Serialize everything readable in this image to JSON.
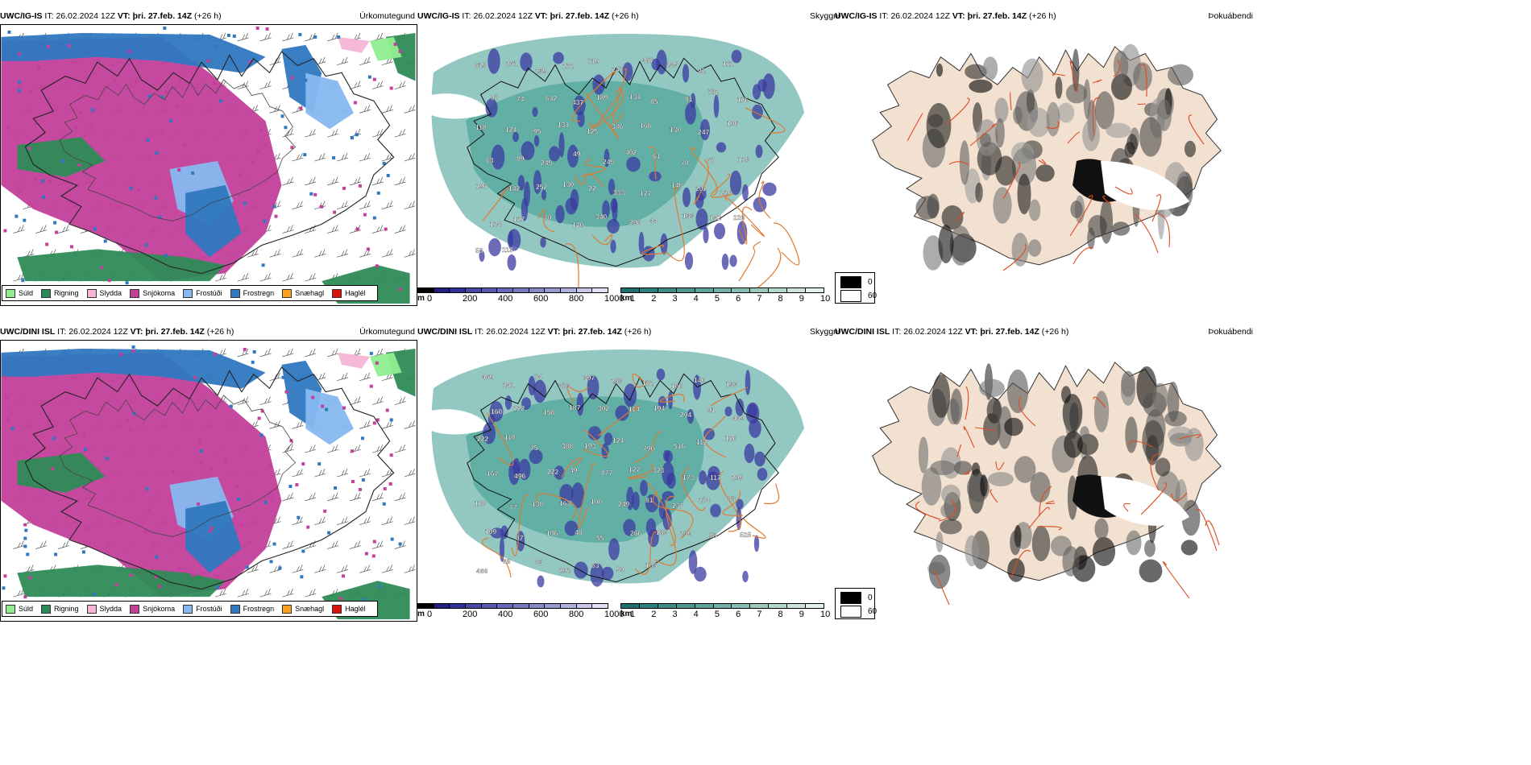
{
  "rows": [
    {
      "id": "row1",
      "panels": [
        {
          "model": "UWC/IG-IS",
          "it_label": "IT:",
          "it": "26.02.2024 12Z",
          "vt_label": "VT:",
          "vt": "þri. 27.feb. 14Z",
          "lead": "(+26 h)",
          "field": "Úrkomutegund"
        },
        {
          "model": "UWC/IG-IS",
          "it_label": "IT:",
          "it": "26.02.2024 12Z",
          "vt_label": "VT:",
          "vt": "þri. 27.feb. 14Z",
          "lead": "(+26 h)",
          "field": "Skyggni"
        },
        {
          "model": "UWC/IG-IS",
          "it_label": "IT:",
          "it": "26.02.2024 12Z",
          "vt_label": "VT:",
          "vt": "þri. 27.feb. 14Z",
          "lead": "(+26 h)",
          "field": "Þokuábendi"
        }
      ],
      "cloud_labels": [
        "615",
        "261",
        "239",
        "272",
        "719",
        "247",
        "487",
        "245",
        "92",
        "111",
        "97",
        "74",
        "642",
        "437",
        "189",
        "131",
        "85",
        "81",
        "782",
        "176",
        "118",
        "124",
        "95",
        "131",
        "125",
        "386",
        "168",
        "130",
        "247",
        "106",
        "63",
        "89",
        "245",
        "49",
        "245",
        "402",
        "61",
        "78",
        "67",
        "128",
        "291",
        "142",
        "252",
        "130",
        "22",
        "333",
        "127",
        "148",
        "202",
        "226",
        "124",
        "127",
        "70",
        "140",
        "340",
        "296",
        "44",
        "133",
        "142",
        "226",
        "56",
        "113"
      ]
    },
    {
      "id": "row2",
      "panels": [
        {
          "model": "UWC/DINI ISL",
          "it_label": "IT:",
          "it": "26.02.2024 12Z",
          "vt_label": "VT:",
          "vt": "þri. 27.feb. 14Z",
          "lead": "(+26 h)",
          "field": "Úrkomutegund"
        },
        {
          "model": "UWC/DINI ISL",
          "it_label": "IT:",
          "it": "26.02.2024 12Z",
          "vt_label": "VT:",
          "vt": "þri. 27.feb. 14Z",
          "lead": "(+26 h)",
          "field": "Skyggni"
        },
        {
          "model": "UWC/DINI ISL",
          "it_label": "IT:",
          "it": "26.02.2024 12Z",
          "vt_label": "VT:",
          "vt": "þri. 27.feb. 14Z",
          "lead": "(+26 h)",
          "field": "Þokuábendi"
        }
      ],
      "cloud_labels": [
        "469",
        "241",
        "74",
        "373",
        "397",
        "253",
        "172",
        "160",
        "140",
        "133",
        "160",
        "222",
        "158",
        "187",
        "302",
        "114",
        "194",
        "204",
        "91",
        "469",
        "222",
        "110",
        "75",
        "388",
        "193",
        "124",
        "790",
        "516",
        "112",
        "126",
        "167",
        "496",
        "222",
        "49",
        "877",
        "127",
        "323",
        "173",
        "117",
        "205",
        "118",
        "77",
        "138",
        "163",
        "100",
        "249",
        "81",
        "237",
        "274",
        "88",
        "109",
        "87",
        "106",
        "48",
        "55",
        "266",
        "183",
        "239",
        "58",
        "525",
        "466",
        "68",
        "63",
        "202",
        "63",
        "50",
        "105"
      ]
    }
  ],
  "precip_legend": [
    {
      "label": "Súld",
      "color": "#90ee90"
    },
    {
      "label": "Rigning",
      "color": "#2e8b57"
    },
    {
      "label": "Slydda",
      "color": "#f5b5d5"
    },
    {
      "label": "Snjókoma",
      "color": "#c2409a"
    },
    {
      "label": "Frostúði",
      "color": "#87b8f0"
    },
    {
      "label": "Frostregn",
      "color": "#2f78c0"
    },
    {
      "label": "Snæhagl",
      "color": "#ffa020"
    },
    {
      "label": "Haglél",
      "color": "#e01010"
    }
  ],
  "cloudbase_bar": {
    "unit": "m",
    "ticks": [
      "0",
      "200",
      "400",
      "600",
      "800",
      "1000"
    ],
    "colors": [
      "#000000",
      "#202080",
      "#303098",
      "#4848a8",
      "#5858b0",
      "#6868b8",
      "#7878c0",
      "#8888c8",
      "#9898d0",
      "#b0b0dc",
      "#c8c8e8",
      "#e0e0f4"
    ]
  },
  "visibility_bar": {
    "unit": "km",
    "ticks": [
      "1",
      "2",
      "3",
      "4",
      "5",
      "6",
      "7",
      "8",
      "9",
      "10"
    ],
    "colors": [
      "#206e6e",
      "#2e7e7c",
      "#3a8a86",
      "#4a968f",
      "#5ca39a",
      "#70b0a6",
      "#86bdb2",
      "#9ccabe",
      "#b4d7cd",
      "#cce4dc",
      "#e4f1ec"
    ]
  },
  "fog_legend": [
    {
      "label": "0",
      "color": "#000000"
    },
    {
      "label": "60",
      "color": "#ffffff"
    }
  ],
  "colors": {
    "snow": "#c2409a",
    "rain": "#2e8b57",
    "freezing_rain": "#2f78c0",
    "freezing_drizzle": "#87b8f0",
    "drizzle": "#90ee90",
    "sleet": "#f5b5d5",
    "visibility": "#3a9a90",
    "cloud": "#3a3aa0",
    "road": "#e07a30",
    "land_fog": "#f2e0d0",
    "fog_road": "#e04a20"
  }
}
